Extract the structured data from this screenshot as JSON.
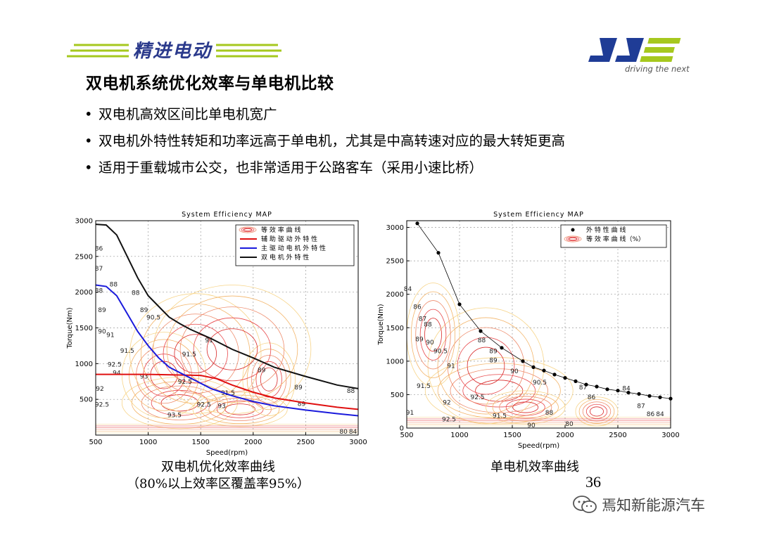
{
  "header": {
    "brand_left": "精进电动",
    "brand_right_tagline": "driving the next",
    "colors": {
      "brand_blue": "#1f3c96",
      "brand_green": "#a6c81e"
    }
  },
  "slide": {
    "title": "双电机系统优化效率与单电机比较",
    "bullets": [
      "双电机高效区间比单电机宽广",
      "双电机外特性转矩和功率远高于单电机，尤其是中高转速对应的最大转矩更高",
      "适用于重载城市公交，也非常适用于公路客车（采用小速比桥）"
    ],
    "page_number": "36"
  },
  "captions": {
    "left_line1": "双电机优化效率曲线",
    "left_line2": "（80%以上效率区覆盖率95%）",
    "right_line1": "单电机效率曲线"
  },
  "watermark": {
    "text": "焉知新能源汽车"
  },
  "chart_data": [
    {
      "type": "line",
      "title": "System Efficiency MAP",
      "xlabel": "Speed(rpm)",
      "ylabel": "Torque(Nm)",
      "xlim": [
        500,
        3000
      ],
      "ylim": [
        0,
        3000
      ],
      "xticks": [
        500,
        1000,
        1500,
        2000,
        2500,
        3000
      ],
      "yticks": [
        500,
        1000,
        1500,
        2000,
        2500,
        3000
      ],
      "grid": true,
      "legend_position": "top-right",
      "series": [
        {
          "name": "等 效 率 曲 线",
          "kind": "contour",
          "color": "#e8474a"
        },
        {
          "name": "辅 助 驱 动 外 特 性",
          "color": "#e01010",
          "x": [
            500,
            1000,
            1500,
            1650,
            1800,
            2000,
            2200,
            2500,
            2800,
            3000
          ],
          "y": [
            850,
            850,
            835,
            790,
            700,
            600,
            520,
            450,
            390,
            360
          ]
        },
        {
          "name": "主 驱 动 电 机 外 特 性",
          "color": "#1a1adc",
          "x": [
            500,
            600,
            700,
            800,
            900,
            1000,
            1100,
            1200,
            1400,
            1600,
            1800,
            2000,
            2200,
            2500,
            2800,
            3000
          ],
          "y": [
            2100,
            2080,
            1950,
            1700,
            1450,
            1250,
            1080,
            950,
            800,
            650,
            550,
            470,
            410,
            350,
            300,
            270
          ]
        },
        {
          "name": "双 电 机 外 特 性",
          "color": "#111111",
          "x": [
            500,
            600,
            700,
            800,
            900,
            1000,
            1100,
            1200,
            1300,
            1400,
            1600,
            1800,
            2000,
            2200,
            2500,
            2800,
            3000
          ],
          "y": [
            2950,
            2940,
            2800,
            2500,
            2200,
            1950,
            1800,
            1650,
            1560,
            1480,
            1350,
            1200,
            1080,
            950,
            820,
            700,
            650
          ]
        }
      ],
      "contour_labels": [
        {
          "x": 530,
          "y": 2580,
          "text": "86"
        },
        {
          "x": 530,
          "y": 2300,
          "text": "87"
        },
        {
          "x": 530,
          "y": 1990,
          "text": "88"
        },
        {
          "x": 670,
          "y": 2080,
          "text": "88"
        },
        {
          "x": 560,
          "y": 1720,
          "text": "89"
        },
        {
          "x": 880,
          "y": 1960,
          "text": "88"
        },
        {
          "x": 960,
          "y": 1720,
          "text": "89"
        },
        {
          "x": 1050,
          "y": 1620,
          "text": "90.5"
        },
        {
          "x": 560,
          "y": 1420,
          "text": "90"
        },
        {
          "x": 640,
          "y": 1370,
          "text": "91"
        },
        {
          "x": 800,
          "y": 1150,
          "text": "91.5"
        },
        {
          "x": 680,
          "y": 960,
          "text": "92.5"
        },
        {
          "x": 700,
          "y": 840,
          "text": "94"
        },
        {
          "x": 960,
          "y": 790,
          "text": "93"
        },
        {
          "x": 540,
          "y": 620,
          "text": "92"
        },
        {
          "x": 560,
          "y": 400,
          "text": "92.5"
        },
        {
          "x": 1390,
          "y": 1100,
          "text": "91.5"
        },
        {
          "x": 1350,
          "y": 720,
          "text": "92.5"
        },
        {
          "x": 1530,
          "y": 400,
          "text": "92.5"
        },
        {
          "x": 1700,
          "y": 380,
          "text": "93"
        },
        {
          "x": 1760,
          "y": 560,
          "text": "91.5"
        },
        {
          "x": 1580,
          "y": 1300,
          "text": "91"
        },
        {
          "x": 2080,
          "y": 880,
          "text": "89"
        },
        {
          "x": 2430,
          "y": 640,
          "text": "89"
        },
        {
          "x": 2930,
          "y": 590,
          "text": "88"
        },
        {
          "x": 1250,
          "y": 250,
          "text": "93.5"
        },
        {
          "x": 2460,
          "y": 410,
          "text": "89"
        },
        {
          "x": 2860,
          "y": 20,
          "text": "80"
        },
        {
          "x": 2950,
          "y": 20,
          "text": "84"
        }
      ]
    },
    {
      "type": "line",
      "title": "System Efficiency MAP",
      "xlabel": "Speed(rpm)",
      "ylabel": "Torque(Nm)",
      "xlim": [
        500,
        3000
      ],
      "ylim": [
        0,
        3100
      ],
      "xticks": [
        500,
        1000,
        1500,
        2000,
        2500,
        3000
      ],
      "yticks": [
        0,
        500,
        1000,
        1500,
        2000,
        2500,
        3000
      ],
      "grid": true,
      "legend_position": "top-right",
      "series": [
        {
          "name": "外 特 性 曲 线",
          "color": "#000000",
          "marker": "dot",
          "x": [
            600,
            800,
            1000,
            1200,
            1400,
            1600,
            1700,
            1800,
            1900,
            2000,
            2100,
            2200,
            2300,
            2400,
            2500,
            2600,
            2700,
            2800,
            2900,
            3000
          ],
          "y": [
            3060,
            2620,
            1850,
            1450,
            1200,
            1000,
            910,
            860,
            800,
            750,
            700,
            650,
            620,
            580,
            560,
            530,
            510,
            480,
            460,
            440
          ]
        },
        {
          "name": "等 效 率 曲 线（%）",
          "kind": "contour",
          "color": "#e8474a"
        }
      ],
      "contour_labels": [
        {
          "x": 510,
          "y": 2050,
          "text": "84"
        },
        {
          "x": 600,
          "y": 1780,
          "text": "86"
        },
        {
          "x": 650,
          "y": 1600,
          "text": "87"
        },
        {
          "x": 700,
          "y": 1520,
          "text": "88"
        },
        {
          "x": 620,
          "y": 1300,
          "text": "89"
        },
        {
          "x": 720,
          "y": 1250,
          "text": "90"
        },
        {
          "x": 820,
          "y": 1120,
          "text": "90.5"
        },
        {
          "x": 920,
          "y": 900,
          "text": "91"
        },
        {
          "x": 1210,
          "y": 1280,
          "text": "88"
        },
        {
          "x": 1320,
          "y": 1120,
          "text": "89"
        },
        {
          "x": 1520,
          "y": 820,
          "text": "90"
        },
        {
          "x": 1760,
          "y": 650,
          "text": "90.5"
        },
        {
          "x": 1320,
          "y": 980,
          "text": "89"
        },
        {
          "x": 660,
          "y": 600,
          "text": "91.5"
        },
        {
          "x": 1170,
          "y": 430,
          "text": "92.5"
        },
        {
          "x": 880,
          "y": 350,
          "text": "92"
        },
        {
          "x": 900,
          "y": 100,
          "text": "92.5"
        },
        {
          "x": 530,
          "y": 200,
          "text": "91"
        },
        {
          "x": 1380,
          "y": 150,
          "text": "91.5"
        },
        {
          "x": 1680,
          "y": 10,
          "text": "90"
        },
        {
          "x": 1850,
          "y": 200,
          "text": "88"
        },
        {
          "x": 2170,
          "y": 580,
          "text": "87"
        },
        {
          "x": 2250,
          "y": 430,
          "text": "86"
        },
        {
          "x": 2580,
          "y": 560,
          "text": "84"
        },
        {
          "x": 2720,
          "y": 300,
          "text": "87"
        },
        {
          "x": 2810,
          "y": 180,
          "text": "86"
        },
        {
          "x": 2900,
          "y": 180,
          "text": "84"
        },
        {
          "x": 2040,
          "y": 30,
          "text": "80"
        }
      ]
    }
  ]
}
